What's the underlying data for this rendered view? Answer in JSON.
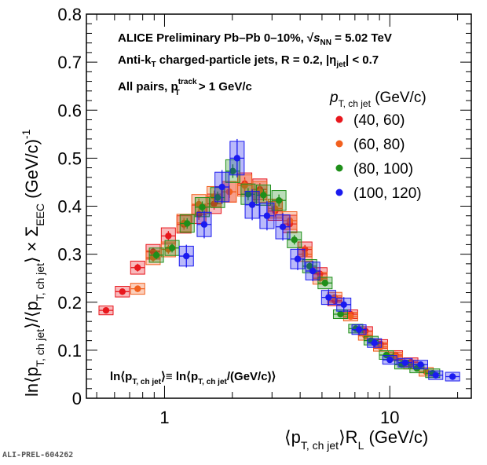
{
  "chart_data": {
    "type": "scatter",
    "x_scale": "log",
    "xlim": [
      0.45,
      23
    ],
    "ylim": [
      0,
      0.8
    ],
    "x_ticks": [
      {
        "value": 1,
        "label": "1"
      },
      {
        "value": 10,
        "label": "10"
      }
    ],
    "y_ticks": [
      {
        "value": 0,
        "label": "0"
      },
      {
        "value": 0.1,
        "label": "0.1"
      },
      {
        "value": 0.2,
        "label": "0.2"
      },
      {
        "value": 0.3,
        "label": "0.3"
      },
      {
        "value": 0.4,
        "label": "0.4"
      },
      {
        "value": 0.5,
        "label": "0.5"
      },
      {
        "value": 0.6,
        "label": "0.6"
      },
      {
        "value": 0.7,
        "label": "0.7"
      },
      {
        "value": 0.8,
        "label": "0.8"
      }
    ],
    "xlabel_parts": [
      "⟨p",
      "T, ch jet",
      "⟩R",
      "L",
      " (GeV/c)"
    ],
    "ylabel_parts": [
      "ln⟨p",
      "T, ch jet",
      "⟩/⟨p",
      "T, ch jet",
      "⟩  ×  Σ",
      "EEC",
      " (GeV/c)",
      "-1"
    ],
    "annotations": {
      "line1_a": "ALICE Preliminary  Pb–Pb 0–10%,  √",
      "line1_s": "s",
      "line1_nn": "NN",
      "line1_b": " = 5.02 TeV",
      "line2_a": "Anti-k",
      "line2_t": "T",
      "line2_b": " charged-particle jets,  R = 0.2, |η",
      "line2_jet": "jet",
      "line2_c": "| < 0.7",
      "line3_a": "All pairs,   p",
      "line3_sup": "track",
      "line3_sub": "T",
      "line3_b": " > 1 GeV/c",
      "bottom_a": "ln⟨p",
      "bottom_sub1": "T, ch jet",
      "bottom_b": "⟩≡ ln⟨p",
      "bottom_sub2": "T, ch jet",
      "bottom_c": "/(GeV/c)⟩"
    },
    "legend": {
      "title_p": "p",
      "title_sub": "T, ch jet",
      "title_unit": " (GeV/c)",
      "position": "right"
    },
    "series": [
      {
        "name": "(40, 60)",
        "color": "#e8171d",
        "x": [
          0.55,
          0.65,
          0.76,
          0.89,
          1.04,
          1.22,
          1.42,
          1.66,
          1.94,
          2.27,
          2.65,
          3.1,
          3.6,
          4.2,
          4.9,
          5.7,
          6.7,
          7.8,
          9.1,
          10.6,
          12.4
        ],
        "y": [
          0.183,
          0.222,
          0.272,
          0.305,
          0.338,
          0.362,
          0.383,
          0.405,
          0.43,
          0.447,
          0.435,
          0.39,
          0.363,
          0.31,
          0.259,
          0.203,
          0.175,
          0.14,
          0.113,
          0.09,
          0.075
        ]
      },
      {
        "name": "(60, 80)",
        "color": "#f2601e",
        "x": [
          0.76,
          0.89,
          1.04,
          1.22,
          1.42,
          1.66,
          1.94,
          2.27,
          2.65,
          3.1,
          3.6,
          4.2,
          4.9,
          5.7,
          6.7,
          7.8,
          9.1,
          10.6,
          12.4,
          14.5
        ],
        "y": [
          0.228,
          0.293,
          0.31,
          0.365,
          0.404,
          0.42,
          0.43,
          0.443,
          0.43,
          0.395,
          0.37,
          0.3,
          0.25,
          0.21,
          0.17,
          0.13,
          0.107,
          0.087,
          0.07,
          0.055
        ]
      },
      {
        "name": "(80, 100)",
        "color": "#1f8f1a",
        "x": [
          0.92,
          1.08,
          1.26,
          1.47,
          1.72,
          2.01,
          2.35,
          2.75,
          3.22,
          3.77,
          4.41,
          5.16,
          6.04,
          7.06,
          8.26,
          9.66,
          11.3,
          13.2,
          15.5
        ],
        "y": [
          0.298,
          0.313,
          0.364,
          0.398,
          0.418,
          0.473,
          0.425,
          0.423,
          0.412,
          0.33,
          0.275,
          0.24,
          0.175,
          0.145,
          0.12,
          0.09,
          0.07,
          0.062,
          0.052
        ]
      },
      {
        "name": "(100, 120)",
        "color": "#1a1aef",
        "x": [
          1.25,
          1.5,
          1.8,
          2.1,
          2.45,
          2.85,
          3.35,
          3.9,
          4.55,
          5.35,
          6.25,
          7.3,
          8.55,
          10.0,
          11.7,
          13.7,
          16.0,
          19.0
        ],
        "y": [
          0.296,
          0.362,
          0.44,
          0.5,
          0.403,
          0.38,
          0.357,
          0.29,
          0.265,
          0.21,
          0.195,
          0.143,
          0.115,
          0.08,
          0.074,
          0.07,
          0.048,
          0.045
        ]
      }
    ]
  },
  "watermark": "ALI-PREL-604262"
}
